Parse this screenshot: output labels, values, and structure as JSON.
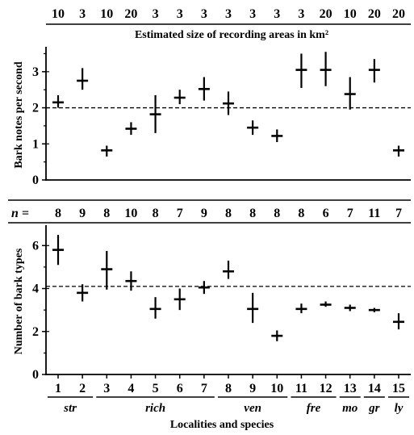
{
  "chart_data": [
    {
      "type": "scatter",
      "top_axis_title": "Estimated size of recording areas in km²",
      "area_sizes": [
        "10",
        "3",
        "10",
        "20",
        "3",
        "3",
        "3",
        "3",
        "3",
        "3",
        "3",
        "20",
        "10",
        "20",
        "20"
      ],
      "ylabel": "Bark notes per second",
      "ylim": [
        0,
        3.6
      ],
      "yticks": [
        "0",
        "1",
        "2",
        "3"
      ],
      "reference_line": 2.0,
      "x": [
        1,
        2,
        3,
        4,
        5,
        6,
        7,
        8,
        9,
        10,
        11,
        12,
        13,
        14,
        15
      ],
      "values": [
        2.15,
        2.75,
        0.82,
        1.42,
        1.82,
        2.28,
        2.52,
        2.12,
        1.45,
        1.22,
        3.05,
        3.05,
        2.38,
        3.05,
        0.82
      ],
      "ranges": [
        [
          2.0,
          2.35
        ],
        [
          2.5,
          3.1
        ],
        [
          0.65,
          0.95
        ],
        [
          1.25,
          1.6
        ],
        [
          1.3,
          2.35
        ],
        [
          2.1,
          2.5
        ],
        [
          2.2,
          2.85
        ],
        [
          1.8,
          2.45
        ],
        [
          1.25,
          1.65
        ],
        [
          1.05,
          1.4
        ],
        [
          2.55,
          3.5
        ],
        [
          2.6,
          3.55
        ],
        [
          1.95,
          2.85
        ],
        [
          2.7,
          3.35
        ],
        [
          0.65,
          0.95
        ]
      ]
    },
    {
      "type": "scatter",
      "n_label": "n =",
      "n_values": [
        "8",
        "9",
        "8",
        "10",
        "8",
        "7",
        "9",
        "8",
        "8",
        "8",
        "8",
        "6",
        "7",
        "11",
        "7"
      ],
      "ylabel": "Number of bark types",
      "ylim": [
        0,
        6.8
      ],
      "yticks": [
        "0",
        "2",
        "4",
        "6"
      ],
      "reference_line": 4.1,
      "x": [
        1,
        2,
        3,
        4,
        5,
        6,
        7,
        8,
        9,
        10,
        11,
        12,
        13,
        14,
        15
      ],
      "xtick_labels": [
        "1",
        "2",
        "3",
        "4",
        "5",
        "6",
        "7",
        "8",
        "9",
        "10",
        "11",
        "12",
        "13",
        "14",
        "15"
      ],
      "values": [
        5.8,
        3.8,
        4.9,
        4.35,
        3.05,
        3.5,
        4.05,
        4.8,
        3.05,
        1.8,
        3.05,
        3.25,
        3.1,
        3.0,
        2.45
      ],
      "ranges": [
        [
          5.1,
          6.5
        ],
        [
          3.4,
          4.2
        ],
        [
          3.95,
          5.75
        ],
        [
          3.9,
          4.8
        ],
        [
          2.6,
          3.6
        ],
        [
          3.0,
          4.0
        ],
        [
          3.75,
          4.35
        ],
        [
          4.45,
          5.3
        ],
        [
          2.4,
          3.8
        ],
        [
          1.55,
          2.05
        ],
        [
          2.85,
          3.3
        ],
        [
          3.15,
          3.4
        ],
        [
          2.95,
          3.25
        ],
        [
          2.9,
          3.1
        ],
        [
          2.1,
          2.85
        ]
      ],
      "xlabel": "Localities and species",
      "groups": [
        {
          "label": "str",
          "from": 1,
          "to": 2
        },
        {
          "label": "rich",
          "from": 3,
          "to": 7
        },
        {
          "label": "ven",
          "from": 8,
          "to": 10
        },
        {
          "label": "fre",
          "from": 11,
          "to": 12
        },
        {
          "label": "mo",
          "from": 13,
          "to": 13
        },
        {
          "label": "gr",
          "from": 14,
          "to": 14
        },
        {
          "label": "ly",
          "from": 15,
          "to": 15
        }
      ]
    }
  ]
}
